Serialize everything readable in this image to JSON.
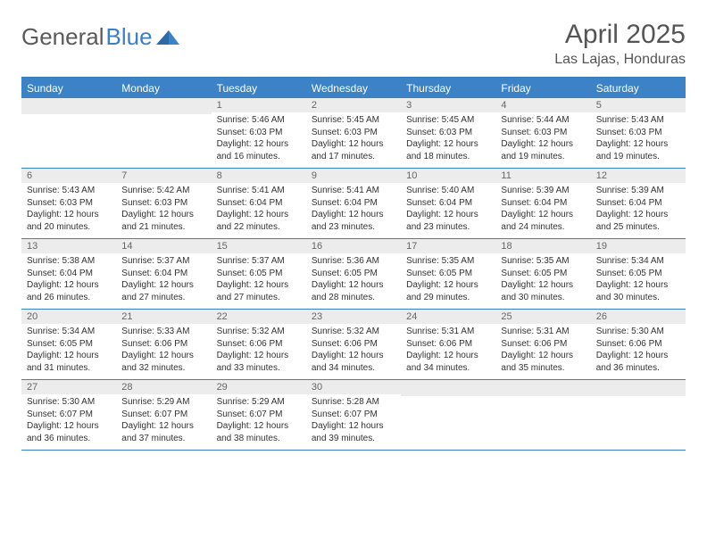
{
  "brand": {
    "left": "General",
    "right": "Blue"
  },
  "title": "April 2025",
  "location": "Las Lajas, Honduras",
  "colors": {
    "header_bg": "#3b82c7",
    "rule": "#3b7fc4",
    "daynum_bg": "#ececec",
    "text": "#333333",
    "title_text": "#555555"
  },
  "weekdays": [
    "Sunday",
    "Monday",
    "Tuesday",
    "Wednesday",
    "Thursday",
    "Friday",
    "Saturday"
  ],
  "weeks": [
    [
      {
        "n": "",
        "lines": []
      },
      {
        "n": "",
        "lines": []
      },
      {
        "n": "1",
        "lines": [
          "Sunrise: 5:46 AM",
          "Sunset: 6:03 PM",
          "Daylight: 12 hours",
          "and 16 minutes."
        ]
      },
      {
        "n": "2",
        "lines": [
          "Sunrise: 5:45 AM",
          "Sunset: 6:03 PM",
          "Daylight: 12 hours",
          "and 17 minutes."
        ]
      },
      {
        "n": "3",
        "lines": [
          "Sunrise: 5:45 AM",
          "Sunset: 6:03 PM",
          "Daylight: 12 hours",
          "and 18 minutes."
        ]
      },
      {
        "n": "4",
        "lines": [
          "Sunrise: 5:44 AM",
          "Sunset: 6:03 PM",
          "Daylight: 12 hours",
          "and 19 minutes."
        ]
      },
      {
        "n": "5",
        "lines": [
          "Sunrise: 5:43 AM",
          "Sunset: 6:03 PM",
          "Daylight: 12 hours",
          "and 19 minutes."
        ]
      }
    ],
    [
      {
        "n": "6",
        "lines": [
          "Sunrise: 5:43 AM",
          "Sunset: 6:03 PM",
          "Daylight: 12 hours",
          "and 20 minutes."
        ]
      },
      {
        "n": "7",
        "lines": [
          "Sunrise: 5:42 AM",
          "Sunset: 6:03 PM",
          "Daylight: 12 hours",
          "and 21 minutes."
        ]
      },
      {
        "n": "8",
        "lines": [
          "Sunrise: 5:41 AM",
          "Sunset: 6:04 PM",
          "Daylight: 12 hours",
          "and 22 minutes."
        ]
      },
      {
        "n": "9",
        "lines": [
          "Sunrise: 5:41 AM",
          "Sunset: 6:04 PM",
          "Daylight: 12 hours",
          "and 23 minutes."
        ]
      },
      {
        "n": "10",
        "lines": [
          "Sunrise: 5:40 AM",
          "Sunset: 6:04 PM",
          "Daylight: 12 hours",
          "and 23 minutes."
        ]
      },
      {
        "n": "11",
        "lines": [
          "Sunrise: 5:39 AM",
          "Sunset: 6:04 PM",
          "Daylight: 12 hours",
          "and 24 minutes."
        ]
      },
      {
        "n": "12",
        "lines": [
          "Sunrise: 5:39 AM",
          "Sunset: 6:04 PM",
          "Daylight: 12 hours",
          "and 25 minutes."
        ]
      }
    ],
    [
      {
        "n": "13",
        "lines": [
          "Sunrise: 5:38 AM",
          "Sunset: 6:04 PM",
          "Daylight: 12 hours",
          "and 26 minutes."
        ]
      },
      {
        "n": "14",
        "lines": [
          "Sunrise: 5:37 AM",
          "Sunset: 6:04 PM",
          "Daylight: 12 hours",
          "and 27 minutes."
        ]
      },
      {
        "n": "15",
        "lines": [
          "Sunrise: 5:37 AM",
          "Sunset: 6:05 PM",
          "Daylight: 12 hours",
          "and 27 minutes."
        ]
      },
      {
        "n": "16",
        "lines": [
          "Sunrise: 5:36 AM",
          "Sunset: 6:05 PM",
          "Daylight: 12 hours",
          "and 28 minutes."
        ]
      },
      {
        "n": "17",
        "lines": [
          "Sunrise: 5:35 AM",
          "Sunset: 6:05 PM",
          "Daylight: 12 hours",
          "and 29 minutes."
        ]
      },
      {
        "n": "18",
        "lines": [
          "Sunrise: 5:35 AM",
          "Sunset: 6:05 PM",
          "Daylight: 12 hours",
          "and 30 minutes."
        ]
      },
      {
        "n": "19",
        "lines": [
          "Sunrise: 5:34 AM",
          "Sunset: 6:05 PM",
          "Daylight: 12 hours",
          "and 30 minutes."
        ]
      }
    ],
    [
      {
        "n": "20",
        "lines": [
          "Sunrise: 5:34 AM",
          "Sunset: 6:05 PM",
          "Daylight: 12 hours",
          "and 31 minutes."
        ]
      },
      {
        "n": "21",
        "lines": [
          "Sunrise: 5:33 AM",
          "Sunset: 6:06 PM",
          "Daylight: 12 hours",
          "and 32 minutes."
        ]
      },
      {
        "n": "22",
        "lines": [
          "Sunrise: 5:32 AM",
          "Sunset: 6:06 PM",
          "Daylight: 12 hours",
          "and 33 minutes."
        ]
      },
      {
        "n": "23",
        "lines": [
          "Sunrise: 5:32 AM",
          "Sunset: 6:06 PM",
          "Daylight: 12 hours",
          "and 34 minutes."
        ]
      },
      {
        "n": "24",
        "lines": [
          "Sunrise: 5:31 AM",
          "Sunset: 6:06 PM",
          "Daylight: 12 hours",
          "and 34 minutes."
        ]
      },
      {
        "n": "25",
        "lines": [
          "Sunrise: 5:31 AM",
          "Sunset: 6:06 PM",
          "Daylight: 12 hours",
          "and 35 minutes."
        ]
      },
      {
        "n": "26",
        "lines": [
          "Sunrise: 5:30 AM",
          "Sunset: 6:06 PM",
          "Daylight: 12 hours",
          "and 36 minutes."
        ]
      }
    ],
    [
      {
        "n": "27",
        "lines": [
          "Sunrise: 5:30 AM",
          "Sunset: 6:07 PM",
          "Daylight: 12 hours",
          "and 36 minutes."
        ]
      },
      {
        "n": "28",
        "lines": [
          "Sunrise: 5:29 AM",
          "Sunset: 6:07 PM",
          "Daylight: 12 hours",
          "and 37 minutes."
        ]
      },
      {
        "n": "29",
        "lines": [
          "Sunrise: 5:29 AM",
          "Sunset: 6:07 PM",
          "Daylight: 12 hours",
          "and 38 minutes."
        ]
      },
      {
        "n": "30",
        "lines": [
          "Sunrise: 5:28 AM",
          "Sunset: 6:07 PM",
          "Daylight: 12 hours",
          "and 39 minutes."
        ]
      },
      {
        "n": "",
        "lines": []
      },
      {
        "n": "",
        "lines": []
      },
      {
        "n": "",
        "lines": []
      }
    ]
  ]
}
